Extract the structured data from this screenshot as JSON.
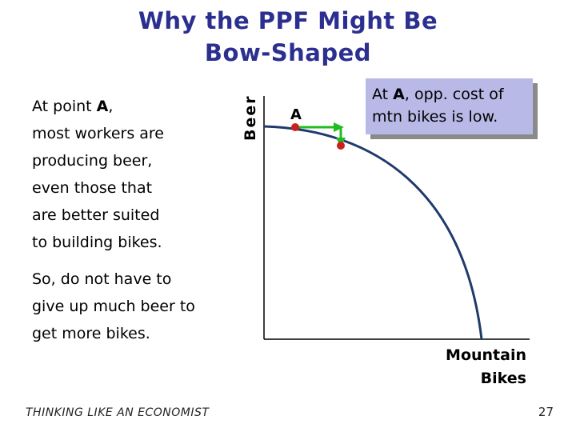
{
  "title_line1": "Why the PPF Might Be",
  "title_line2": "Bow-Shaped",
  "body": {
    "line1_prefix": "At point ",
    "line1_bold": "A",
    "line1_suffix": ",",
    "lines": [
      "most workers are",
      "producing beer,",
      "even those that",
      "are better suited",
      "to building bikes."
    ],
    "para2": [
      "So, do not have to",
      "give up much beer to",
      "get more bikes."
    ]
  },
  "callout": {
    "prefix": "At ",
    "bold": "A",
    "suffix": ", opp. cost of",
    "line2": "mtn bikes is low."
  },
  "chart_data": {
    "type": "line",
    "xlabel": "Mountain Bikes",
    "ylabel": "Beer",
    "point_label": "A",
    "colors": {
      "curve": "#1f3a6b",
      "point": "#cc1f1f",
      "arrow": "#22bb22",
      "axis": "#000000"
    }
  },
  "footer": "THINKING LIKE AN ECONOMIST",
  "page_number": "27"
}
